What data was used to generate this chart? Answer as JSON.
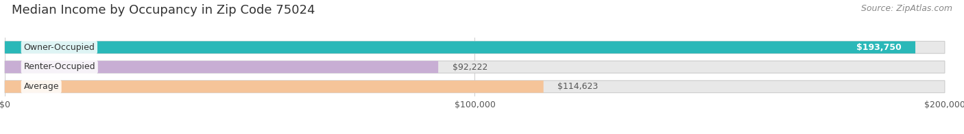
{
  "title": "Median Income by Occupancy in Zip Code 75024",
  "source": "Source: ZipAtlas.com",
  "categories": [
    "Owner-Occupied",
    "Renter-Occupied",
    "Average"
  ],
  "values": [
    193750,
    92222,
    114623
  ],
  "labels": [
    "$193,750",
    "$92,222",
    "$114,623"
  ],
  "label_inside": [
    true,
    false,
    false
  ],
  "label_colors": [
    "#ffffff",
    "#555555",
    "#555555"
  ],
  "bar_colors": [
    "#2ab8b8",
    "#c8aed4",
    "#f5c499"
  ],
  "bar_bg_color": "#e8e8e8",
  "xlim": [
    0,
    200000
  ],
  "xtick_values": [
    0,
    100000,
    200000
  ],
  "xtick_labels": [
    "$0",
    "$100,000",
    "$200,000"
  ],
  "title_fontsize": 13,
  "source_fontsize": 9,
  "label_fontsize": 9,
  "cat_fontsize": 9,
  "bar_height": 0.62,
  "background_color": "#ffffff",
  "grid_color": "#cccccc"
}
